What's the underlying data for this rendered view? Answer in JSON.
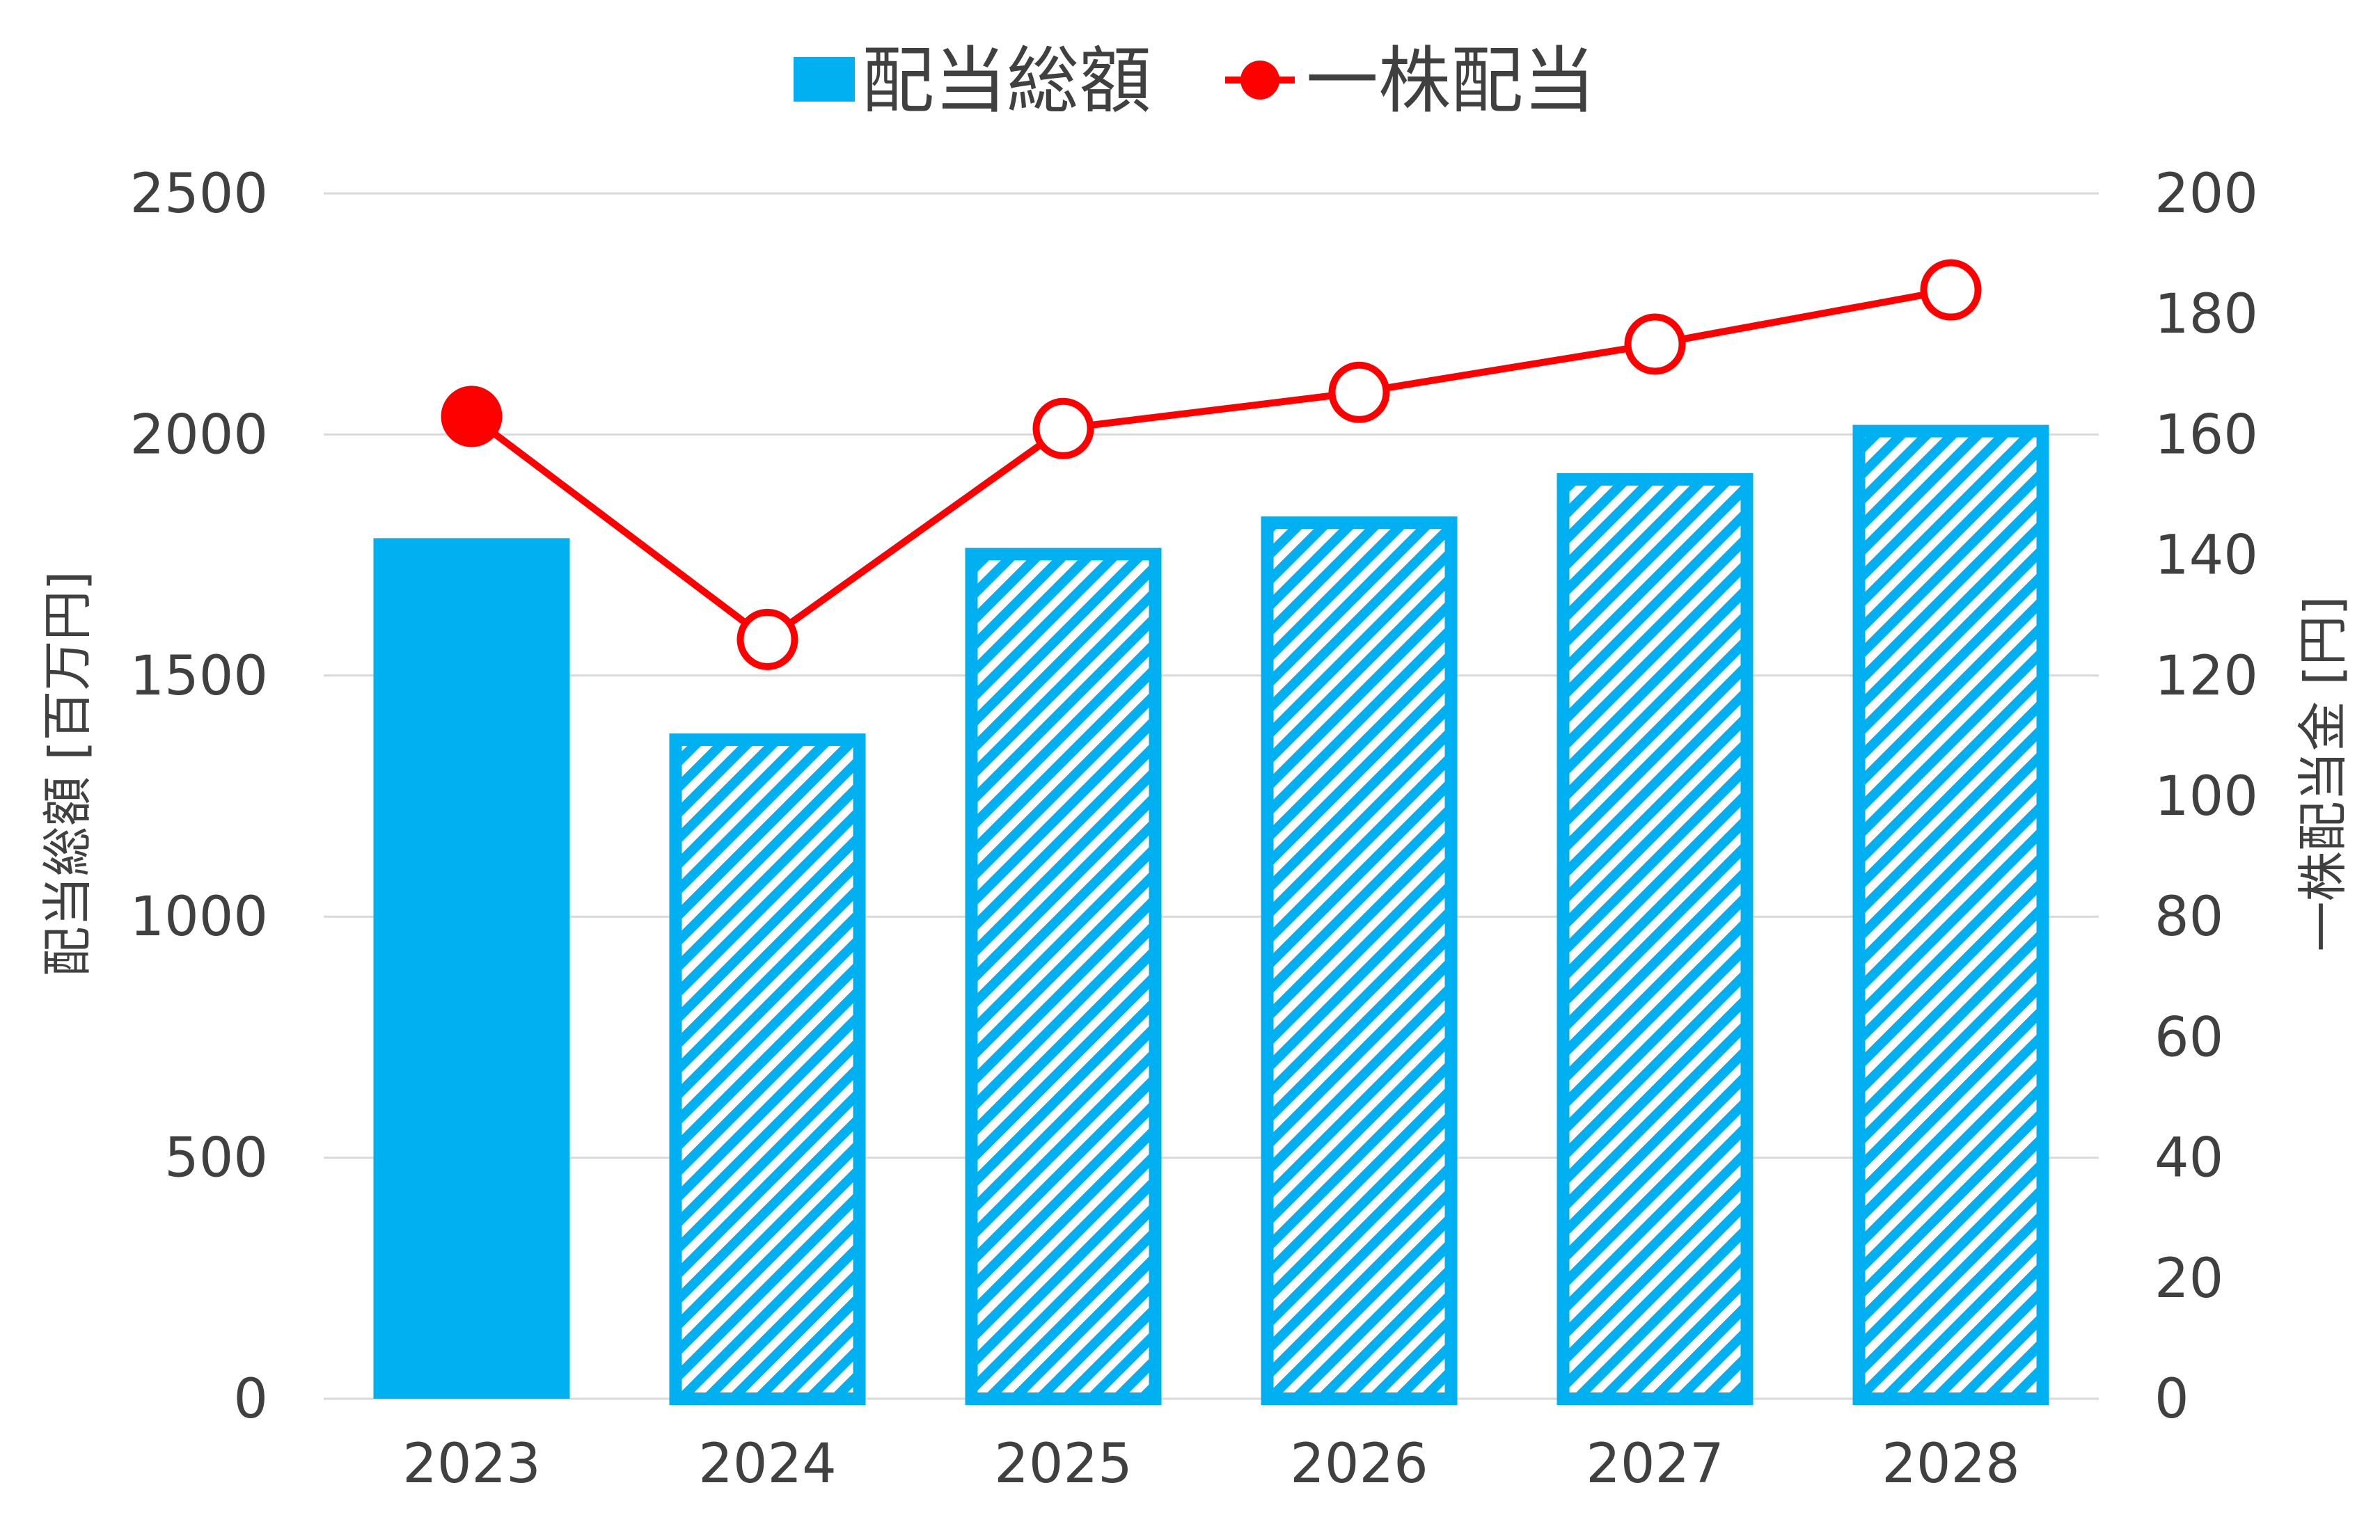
{
  "chart_data": {
    "type": "bar",
    "categories": [
      "2023",
      "2024",
      "2025",
      "2026",
      "2027",
      "2028"
    ],
    "series": [
      {
        "name": "配当総額",
        "type": "bar",
        "axis": "left",
        "values": [
          1785,
          1380,
          1765,
          1830,
          1920,
          2020
        ],
        "styles": [
          "solid",
          "hatched",
          "hatched",
          "hatched",
          "hatched",
          "hatched"
        ]
      },
      {
        "name": "一株配当",
        "type": "line",
        "axis": "right",
        "values": [
          163,
          126,
          161,
          167,
          175,
          184
        ],
        "markers": [
          "filled",
          "open",
          "open",
          "open",
          "open",
          "open"
        ]
      }
    ],
    "y_left": {
      "label": "配当総額 [百万円]",
      "min": 0,
      "max": 2500,
      "step": 500,
      "ticks": [
        "0",
        "500",
        "1000",
        "1500",
        "2000",
        "2500"
      ]
    },
    "y_right": {
      "label": "一株配当金 [円]",
      "min": 0,
      "max": 200,
      "step": 20,
      "ticks": [
        "0",
        "20",
        "40",
        "60",
        "80",
        "100",
        "120",
        "140",
        "160",
        "180",
        "200"
      ]
    },
    "grid": true,
    "legend": "top-center",
    "colors": {
      "bar": "#00b0f0",
      "line": "#ff0000",
      "grid": "#d9d9d9",
      "text": "#404040"
    }
  }
}
